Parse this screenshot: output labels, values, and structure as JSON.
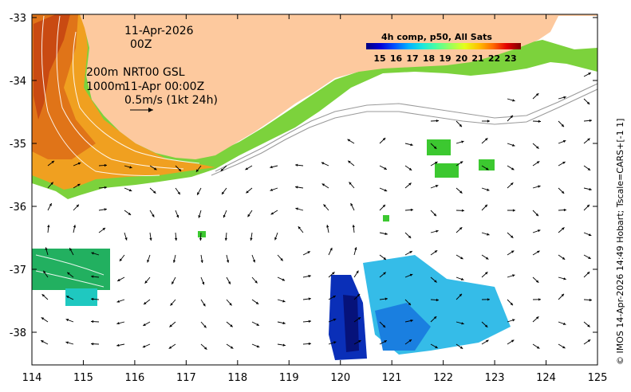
{
  "map": {
    "date_label": "11-Apr-2026",
    "time_label": "00Z",
    "isobath_label_1": "200m",
    "isobath_label_2": "1000m",
    "source_label": "NRT00 GSL",
    "current_time_label": "11-Apr 00:00Z",
    "scale_label": "0.5m/s (1kt 24h)",
    "credit": "© IMOS 14-Apr-2026 14:49 Hobart; Tscale=CARS+[-1 1]",
    "colorbar": {
      "title": "4h comp, p50, All Sats",
      "ticks": [
        "15",
        "16",
        "17",
        "18",
        "19",
        "20",
        "21",
        "22",
        "23"
      ],
      "colors": [
        "#00007f",
        "#0000d6",
        "#0050ff",
        "#00b0ff",
        "#1ae6dd",
        "#4dff9e",
        "#9aff5c",
        "#e5ff1a",
        "#ffc000",
        "#ff6a00",
        "#e30000",
        "#7f0000"
      ]
    },
    "x_ticks": [
      "114",
      "115",
      "116",
      "117",
      "118",
      "119",
      "120",
      "121",
      "122",
      "123",
      "124",
      "125"
    ],
    "y_ticks": [
      "-33",
      "-34",
      "-35",
      "-36",
      "-37",
      "-38"
    ],
    "land_color": "#fdc99e"
  }
}
